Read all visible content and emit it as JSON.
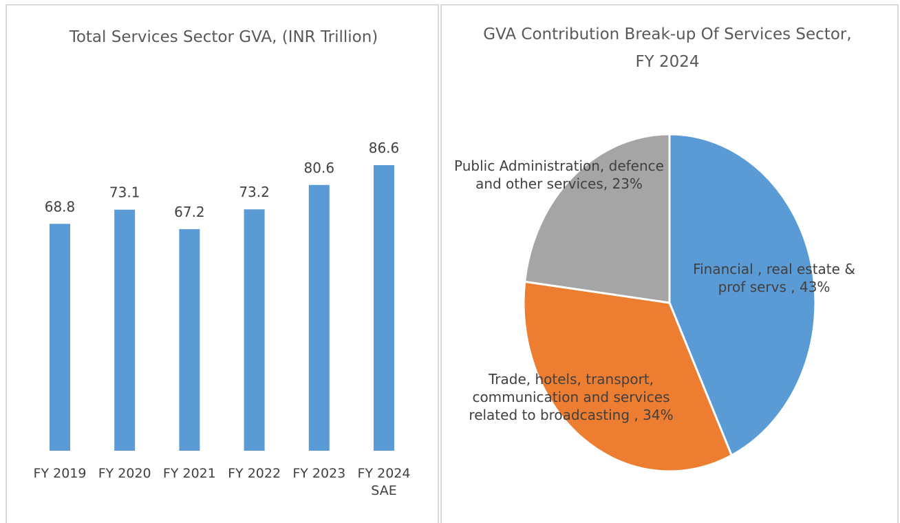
{
  "chart_data": [
    {
      "type": "bar",
      "title": "Total Services Sector GVA, (INR Trillion)",
      "categories": [
        "FY 2019",
        "FY 2020",
        "FY 2021",
        "FY 2022",
        "FY 2023",
        "FY 2024 SAE"
      ],
      "values": [
        68.8,
        73.1,
        67.2,
        73.2,
        80.6,
        86.6
      ],
      "color": "#5b9bd5"
    },
    {
      "type": "pie",
      "title": "GVA Contribution Break-up Of Services Sector, FY 2024",
      "categories": [
        "Financial , real estate & prof servs ,",
        "Trade, hotels, transport, communication and services related to broadcasting ,",
        "Public Administration, defence and other services,"
      ],
      "values": [
        43,
        34,
        23
      ],
      "value_labels": [
        "43%",
        "34%",
        "23%"
      ],
      "colors": [
        "#5b9bd5",
        "#ed7d31",
        "#a5a5a5"
      ]
    }
  ]
}
